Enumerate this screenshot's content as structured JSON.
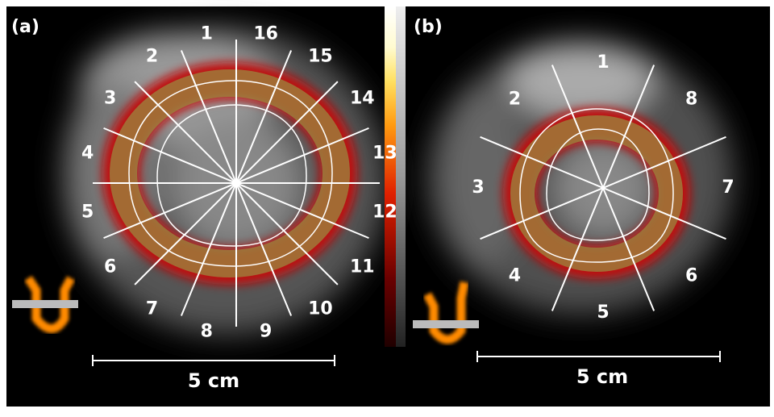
{
  "panel_a": {
    "label": "(a)",
    "segments": [
      "1",
      "2",
      "3",
      "4",
      "5",
      "6",
      "7",
      "8",
      "9",
      "10",
      "11",
      "12",
      "13",
      "14",
      "15",
      "16"
    ],
    "scale_bar": "5 cm"
  },
  "panel_b": {
    "label": "(b)",
    "segments": [
      "1",
      "2",
      "3",
      "4",
      "5",
      "6",
      "7",
      "8"
    ],
    "scale_bar": "5 cm"
  }
}
